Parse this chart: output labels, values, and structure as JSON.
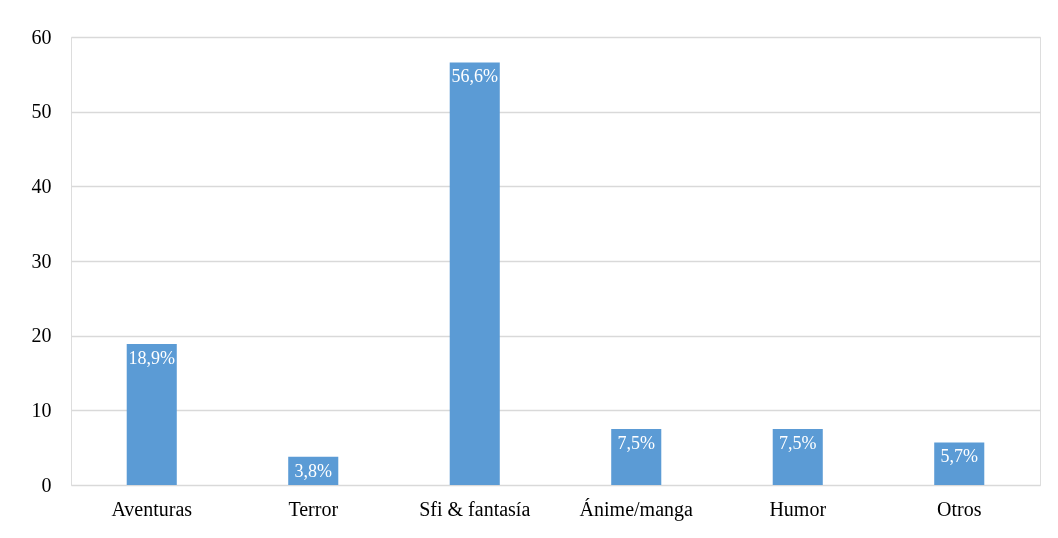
{
  "chart_data": {
    "type": "bar",
    "categories": [
      "Aventuras",
      "Terror",
      "Sfi & fantasía",
      "Ánime/manga",
      "Humor",
      "Otros"
    ],
    "values": [
      18.9,
      3.8,
      56.6,
      7.5,
      7.5,
      5.7
    ],
    "color": "#5b9bd5",
    "value_labels": [
      "18,9%",
      "3,8%",
      "56,6%",
      "7,5%",
      "7,5%",
      "5,7%"
    ],
    "ylim": [
      0,
      60
    ],
    "yticks": [
      0,
      10,
      20,
      30,
      40,
      50,
      60
    ],
    "grid": "y"
  }
}
